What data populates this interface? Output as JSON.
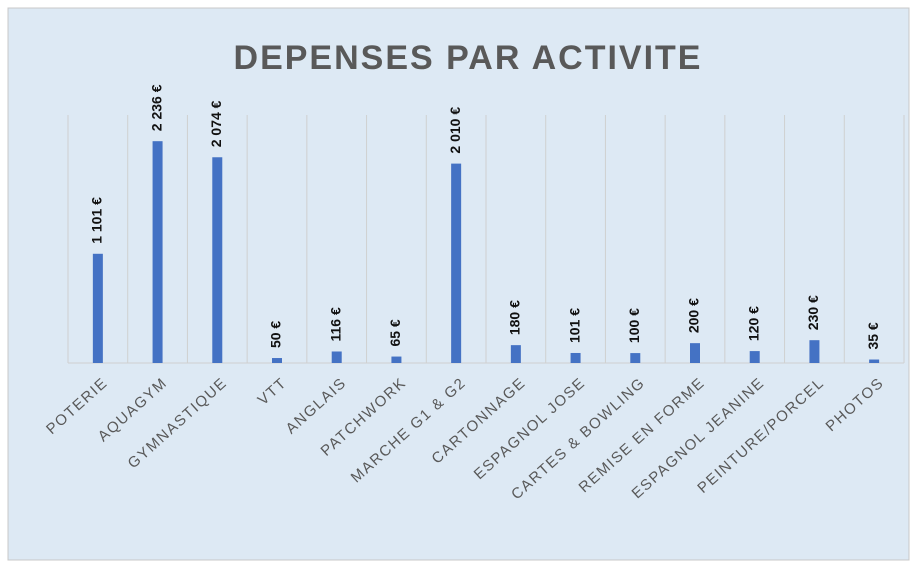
{
  "chart_data": {
    "type": "bar",
    "title": "DEPENSES PAR ACTIVITE",
    "categories": [
      "POTERIE",
      "AQUAGYM",
      "GYMNASTIQUE",
      "VTT",
      "ANGLAIS",
      "PATCHWORK",
      "MARCHE G1 & G2",
      "CARTONNAGE",
      "ESPAGNOL JOSE",
      "CARTES & BOWLING",
      "REMISE EN FORME",
      "ESPAGNOL JEANINE",
      "PEINTURE/PORCEL",
      "PHOTOS"
    ],
    "values": [
      1101,
      2236,
      2074,
      50,
      116,
      65,
      2010,
      180,
      101,
      100,
      200,
      120,
      230,
      35
    ],
    "value_labels": [
      "1 101 €",
      "2 236 €",
      "2 074 €",
      "50 €",
      "116 €",
      "65 €",
      "2 010 €",
      "180 €",
      "101 €",
      "100 €",
      "200 €",
      "120 €",
      "230 €",
      "35 €"
    ],
    "color": "#4472c4",
    "ylim": [
      0,
      2500
    ]
  }
}
